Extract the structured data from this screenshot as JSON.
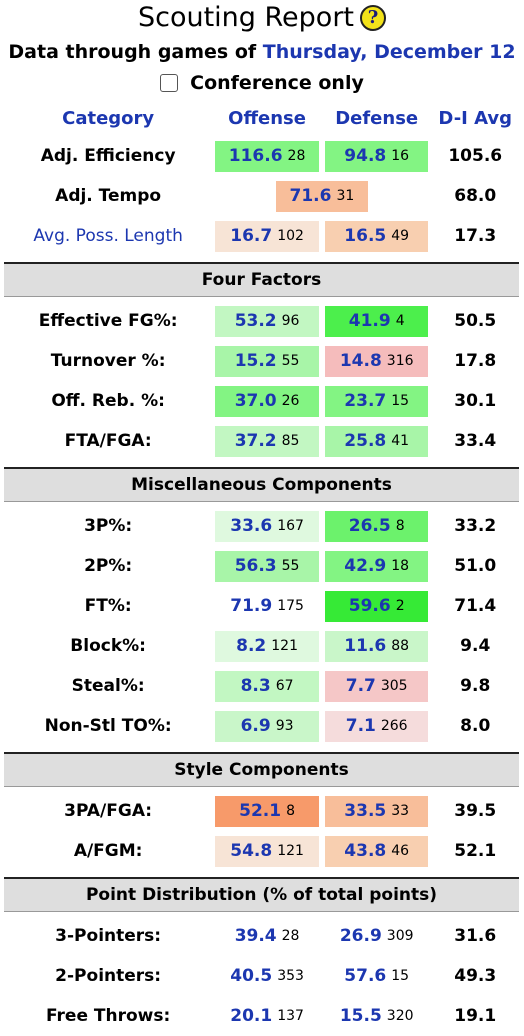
{
  "header": {
    "title": "Scouting Report",
    "help_icon": "?",
    "subtitle_prefix": "Data through games of",
    "subtitle_date": "Thursday, December 12",
    "conference_only_label": "Conference only"
  },
  "columns": {
    "category": "Category",
    "offense": "Offense",
    "defense": "Defense",
    "avg": "D-I Avg"
  },
  "colors": {
    "link": "#1c37b0",
    "strong_green": "#4cef4c",
    "green": "#83f483",
    "light_green": "#c2f7c2",
    "pale_green": "#dff9df",
    "strong_orange": "#f79a6a",
    "orange": "#f8be9a",
    "pale_orange": "#f7e4d6",
    "pink": "#f5bcbc",
    "pale_pink": "#f5dcdc",
    "section_bg": "#dedede"
  },
  "top_rows": [
    {
      "label": "Adj. Efficiency",
      "offense": "116.6",
      "offense_rank": "28",
      "defense": "94.8",
      "defense_rank": "16",
      "avg": "105.6",
      "off_color": "#83f483",
      "def_color": "#83f483"
    },
    {
      "label": "Adj. Tempo",
      "tempo": "71.6",
      "tempo_rank": "31",
      "avg": "68.0",
      "tempo_color": "#f8be9a"
    },
    {
      "label": "Avg. Poss. Length",
      "offense": "16.7",
      "offense_rank": "102",
      "defense": "16.5",
      "defense_rank": "49",
      "avg": "17.3",
      "off_color": "#f7e4d6",
      "def_color": "#f8cfb0"
    }
  ],
  "sections": [
    {
      "title": "Four Factors",
      "rows": [
        {
          "label": "Effective FG%:",
          "offense": "53.2",
          "offense_rank": "96",
          "defense": "41.9",
          "defense_rank": "4",
          "avg": "50.5",
          "off_color": "#c2f7c2",
          "def_color": "#4cef4c"
        },
        {
          "label": "Turnover %:",
          "offense": "15.2",
          "offense_rank": "55",
          "defense": "14.8",
          "defense_rank": "316",
          "avg": "17.8",
          "off_color": "#a8f5a8",
          "def_color": "#f5bcbc"
        },
        {
          "label": "Off. Reb. %:",
          "offense": "37.0",
          "offense_rank": "26",
          "defense": "23.7",
          "defense_rank": "15",
          "avg": "30.1",
          "off_color": "#83f483",
          "def_color": "#83f483"
        },
        {
          "label": "FTA/FGA:",
          "offense": "37.2",
          "offense_rank": "85",
          "defense": "25.8",
          "defense_rank": "41",
          "avg": "33.4",
          "off_color": "#c2f7c2",
          "def_color": "#a8f5a8"
        }
      ]
    },
    {
      "title": "Miscellaneous Components",
      "rows": [
        {
          "label": "3P%:",
          "offense": "33.6",
          "offense_rank": "167",
          "defense": "26.5",
          "defense_rank": "8",
          "avg": "33.2",
          "off_color": "#dff9df",
          "def_color": "#6cf26c"
        },
        {
          "label": "2P%:",
          "offense": "56.3",
          "offense_rank": "55",
          "defense": "42.9",
          "defense_rank": "18",
          "avg": "51.0",
          "off_color": "#a8f5a8",
          "def_color": "#83f483"
        },
        {
          "label": "FT%:",
          "offense": "71.9",
          "offense_rank": "175",
          "defense": "59.6",
          "defense_rank": "2",
          "avg": "71.4",
          "off_color": "#ffffff",
          "def_color": "#36ea36"
        },
        {
          "label": "Block%:",
          "offense": "8.2",
          "offense_rank": "121",
          "defense": "11.6",
          "defense_rank": "88",
          "avg": "9.4",
          "off_color": "#dff9df",
          "def_color": "#c9f6c9"
        },
        {
          "label": "Steal%:",
          "offense": "8.3",
          "offense_rank": "67",
          "defense": "7.7",
          "defense_rank": "305",
          "avg": "9.8",
          "off_color": "#c2f7c2",
          "def_color": "#f5c7c7"
        },
        {
          "label": "Non-Stl TO%:",
          "offense": "6.9",
          "offense_rank": "93",
          "defense": "7.1",
          "defense_rank": "266",
          "avg": "8.0",
          "off_color": "#c9f6c9",
          "def_color": "#f5dcdc"
        }
      ]
    },
    {
      "title": "Style Components",
      "rows": [
        {
          "label": "3PA/FGA:",
          "offense": "52.1",
          "offense_rank": "8",
          "defense": "33.5",
          "defense_rank": "33",
          "avg": "39.5",
          "off_color": "#f79a6a",
          "def_color": "#f8be9a"
        },
        {
          "label": "A/FGM:",
          "offense": "54.8",
          "offense_rank": "121",
          "defense": "43.8",
          "defense_rank": "46",
          "avg": "52.1",
          "off_color": "#f7e4d6",
          "def_color": "#f8cfb0"
        }
      ]
    },
    {
      "title": "Point Distribution (% of total points)",
      "rows": [
        {
          "label": "3-Pointers:",
          "offense": "39.4",
          "offense_rank": "28",
          "defense": "26.9",
          "defense_rank": "309",
          "avg": "31.6",
          "off_color": "#ffffff",
          "def_color": "#ffffff"
        },
        {
          "label": "2-Pointers:",
          "offense": "40.5",
          "offense_rank": "353",
          "defense": "57.6",
          "defense_rank": "15",
          "avg": "49.3",
          "off_color": "#ffffff",
          "def_color": "#ffffff"
        },
        {
          "label": "Free Throws:",
          "offense": "20.1",
          "offense_rank": "137",
          "defense": "15.5",
          "defense_rank": "320",
          "avg": "19.1",
          "off_color": "#ffffff",
          "def_color": "#ffffff"
        }
      ]
    }
  ]
}
